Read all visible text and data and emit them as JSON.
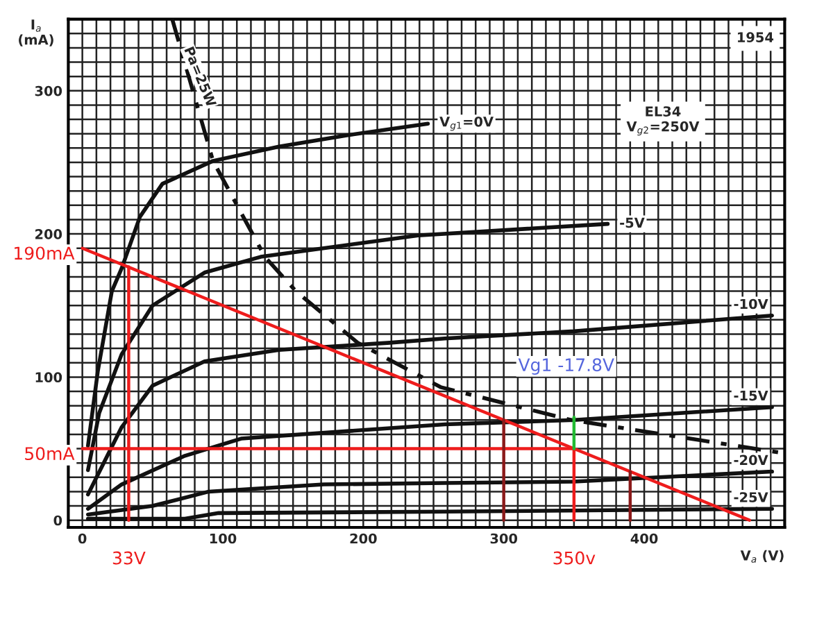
{
  "chart_data": {
    "type": "line",
    "xlabel": "V$_{a}$ (V)",
    "ylabel": "I$_{a}$\n(mA)",
    "xlim": [
      -10,
      500
    ],
    "ylim": [
      -5,
      350
    ],
    "xticks": [
      0,
      {
        "value": 10,
        "label": null
      },
      {
        "value": 20,
        "label": null
      },
      {
        "value": 30,
        "label": null
      },
      {
        "value": 40,
        "label": null
      },
      {
        "value": 50,
        "label": null
      },
      {
        "value": 60,
        "label": null
      },
      {
        "value": 70,
        "label": null
      },
      {
        "value": 80,
        "label": null
      },
      {
        "value": 90,
        "label": null
      },
      100,
      {
        "value": 110,
        "label": null
      },
      {
        "value": 120,
        "label": null
      },
      {
        "value": 130,
        "label": null
      },
      {
        "value": 140,
        "label": null
      },
      {
        "value": 150,
        "label": null
      },
      {
        "value": 160,
        "label": null
      },
      {
        "value": 170,
        "label": null
      },
      {
        "value": 180,
        "label": null
      },
      {
        "value": 190,
        "label": null
      },
      200,
      {
        "value": 210,
        "label": null
      },
      {
        "value": 220,
        "label": null
      },
      {
        "value": 230,
        "label": null
      },
      {
        "value": 240,
        "label": null
      },
      {
        "value": 250,
        "label": null
      },
      {
        "value": 260,
        "label": null
      },
      {
        "value": 270,
        "label": null
      },
      {
        "value": 280,
        "label": null
      },
      {
        "value": 290,
        "label": null
      },
      300,
      {
        "value": 310,
        "label": null
      },
      {
        "value": 320,
        "label": null
      },
      {
        "value": 330,
        "label": null
      },
      {
        "value": 340,
        "label": null
      },
      {
        "value": 350,
        "label": null
      },
      {
        "value": 360,
        "label": null
      },
      {
        "value": 370,
        "label": null
      },
      {
        "value": 380,
        "label": null
      },
      {
        "value": 390,
        "label": null
      },
      400,
      {
        "value": 410,
        "label": null
      },
      {
        "value": 420,
        "label": null
      },
      {
        "value": 430,
        "label": null
      },
      {
        "value": 440,
        "label": null
      },
      {
        "value": 450,
        "label": null
      },
      {
        "value": 460,
        "label": null
      },
      {
        "value": 470,
        "label": null
      },
      {
        "value": 480,
        "label": null
      },
      {
        "value": 490,
        "label": null
      }
    ],
    "yticks": [
      0,
      {
        "value": 10,
        "label": null
      },
      {
        "value": 20,
        "label": null
      },
      {
        "value": 30,
        "label": null
      },
      {
        "value": 40,
        "label": null
      },
      {
        "value": 50,
        "label": null
      },
      {
        "value": 60,
        "label": null
      },
      {
        "value": 70,
        "label": null
      },
      {
        "value": 80,
        "label": null
      },
      {
        "value": 90,
        "label": null
      },
      100,
      {
        "value": 110,
        "label": null
      },
      {
        "value": 120,
        "label": null
      },
      {
        "value": 130,
        "label": null
      },
      {
        "value": 140,
        "label": null
      },
      {
        "value": 150,
        "label": null
      },
      {
        "value": 160,
        "label": null
      },
      {
        "value": 170,
        "label": null
      },
      {
        "value": 180,
        "label": null
      },
      {
        "value": 190,
        "label": null
      },
      200,
      {
        "value": 210,
        "label": null
      },
      {
        "value": 220,
        "label": null
      },
      {
        "value": 230,
        "label": null
      },
      {
        "value": 240,
        "label": null
      },
      {
        "value": 250,
        "label": null
      },
      {
        "value": 260,
        "label": null
      },
      {
        "value": 270,
        "label": null
      },
      {
        "value": 280,
        "label": null
      },
      {
        "value": 290,
        "label": null
      },
      300,
      {
        "value": 310,
        "label": null
      },
      {
        "value": 320,
        "label": null
      },
      {
        "value": 330,
        "label": null
      },
      {
        "value": 340,
        "label": null
      }
    ],
    "grid": true,
    "legend": false,
    "line_style": "solid",
    "series": [
      {
        "name": "V$_{g1}$=0V",
        "color": "#111111",
        "x": [
          4,
          11,
          21,
          28,
          41,
          57,
          93,
          140,
          189,
          246
        ],
        "values": [
          52,
          104,
          160,
          176,
          212,
          235,
          251,
          261,
          269,
          277
        ]
      },
      {
        "name": "-5V",
        "color": "#111111",
        "x": [
          4,
          12,
          28,
          50,
          87,
          127,
          239,
          374
        ],
        "values": [
          35,
          75,
          116,
          150,
          173,
          184,
          199,
          207
        ]
      },
      {
        "name": "-10V",
        "color": "#111111",
        "x": [
          4,
          28,
          50,
          87,
          140,
          172,
          219,
          258,
          350,
          491
        ],
        "values": [
          18,
          65,
          94,
          111,
          119,
          121,
          124,
          127,
          132,
          143
        ]
      },
      {
        "name": "-15V",
        "color": "#111111",
        "x": [
          4,
          28,
          73,
          113,
          258,
          350,
          491
        ],
        "values": [
          8,
          25,
          45,
          57,
          67,
          70,
          79
        ]
      },
      {
        "name": "-20V",
        "color": "#111111",
        "x": [
          4,
          50,
          90,
          172,
          258,
          350,
          491
        ],
        "values": [
          4,
          10,
          20,
          25,
          26,
          27,
          34
        ]
      },
      {
        "name": "-25V",
        "color": "#111111",
        "x": [
          4,
          73,
          97,
          258,
          491
        ],
        "values": [
          1,
          1,
          5,
          6,
          8
        ]
      },
      {
        "name": "Pa=25W",
        "color": "#111111",
        "line_style": "dashed",
        "x": [
          64,
          93,
          130,
          152,
          196,
          255,
          348,
          498
        ],
        "values": [
          350,
          251,
          184,
          160,
          124,
          93,
          70,
          47
        ]
      },
      {
        "color": "#ee1c1c",
        "x": [
          0,
          475
        ],
        "values": [
          190,
          0
        ]
      },
      {
        "color": "#ee1c1c",
        "x": [
          0,
          350
        ],
        "values": [
          50,
          50
        ]
      },
      {
        "color": "#ee1c1c",
        "x": [
          33,
          33
        ],
        "values": [
          0,
          177
        ]
      },
      {
        "color": "#ee1c1c",
        "x": [
          350,
          350
        ],
        "values": [
          0,
          50
        ]
      },
      {
        "color": "#22bb33",
        "x": [
          350,
          350
        ],
        "values": [
          50,
          72
        ]
      },
      {
        "color": "#8b1a1a",
        "x": [
          300,
          300
        ],
        "values": [
          0,
          70
        ]
      },
      {
        "color": "#8b1a1a",
        "x": [
          390,
          390
        ],
        "values": [
          0,
          34
        ]
      }
    ],
    "annotations": [
      "1954",
      "EL34\nV$_{g2}$=250V",
      {
        "text": "190mA",
        "x": 0,
        "y": 190
      },
      {
        "text": "50mA",
        "x": 0,
        "y": 50
      },
      {
        "text": "33V",
        "x": 33,
        "y": 0
      },
      {
        "text": "350v",
        "x": 350,
        "y": 0
      },
      {
        "text": "Vg1 -17.8V",
        "x": 350,
        "y": 72
      }
    ]
  }
}
